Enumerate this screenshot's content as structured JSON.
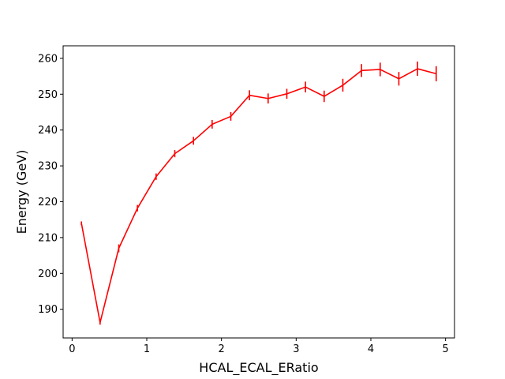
{
  "chart_data": {
    "type": "line",
    "title": "",
    "xlabel": "HCAL_ECAL_ERatio",
    "ylabel": "Energy (GeV)",
    "xlim": [
      -0.12,
      5.12
    ],
    "ylim": [
      182.0,
      263.5
    ],
    "xticks": [
      0,
      1,
      2,
      3,
      4,
      5
    ],
    "yticks": [
      190,
      200,
      210,
      220,
      230,
      240,
      250,
      260
    ],
    "grid": false,
    "color": "#ff0000",
    "series": [
      {
        "x": [
          0.125,
          0.375,
          0.625,
          0.875,
          1.125,
          1.375,
          1.625,
          1.875,
          2.125,
          2.375,
          2.625,
          2.875,
          3.125,
          3.375,
          3.625,
          3.875,
          4.125,
          4.375,
          4.625,
          4.875
        ],
        "y": [
          214.0,
          186.3,
          207.0,
          218.2,
          227.0,
          233.4,
          237.0,
          241.6,
          243.8,
          249.7,
          248.8,
          250.1,
          252.0,
          249.4,
          252.5,
          256.6,
          256.9,
          254.3,
          257.1,
          255.7
        ],
        "yerr": [
          0.5,
          0.6,
          1.1,
          0.9,
          0.9,
          1.0,
          1.1,
          1.2,
          1.2,
          1.4,
          1.4,
          1.4,
          1.5,
          1.6,
          1.8,
          1.8,
          1.9,
          1.9,
          2.0,
          2.1
        ]
      }
    ]
  }
}
